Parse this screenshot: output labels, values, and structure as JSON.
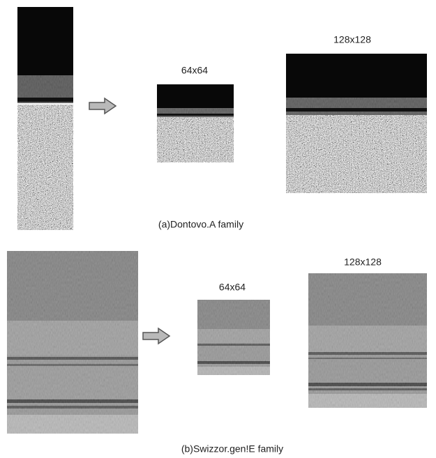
{
  "panel_a": {
    "small_label": "64x64",
    "large_label": "128x128",
    "caption": "(a)Dontovo.A family"
  },
  "panel_b": {
    "small_label": "64x64",
    "large_label": "128x128",
    "caption": "(b)Swizzor.gen!E family"
  }
}
